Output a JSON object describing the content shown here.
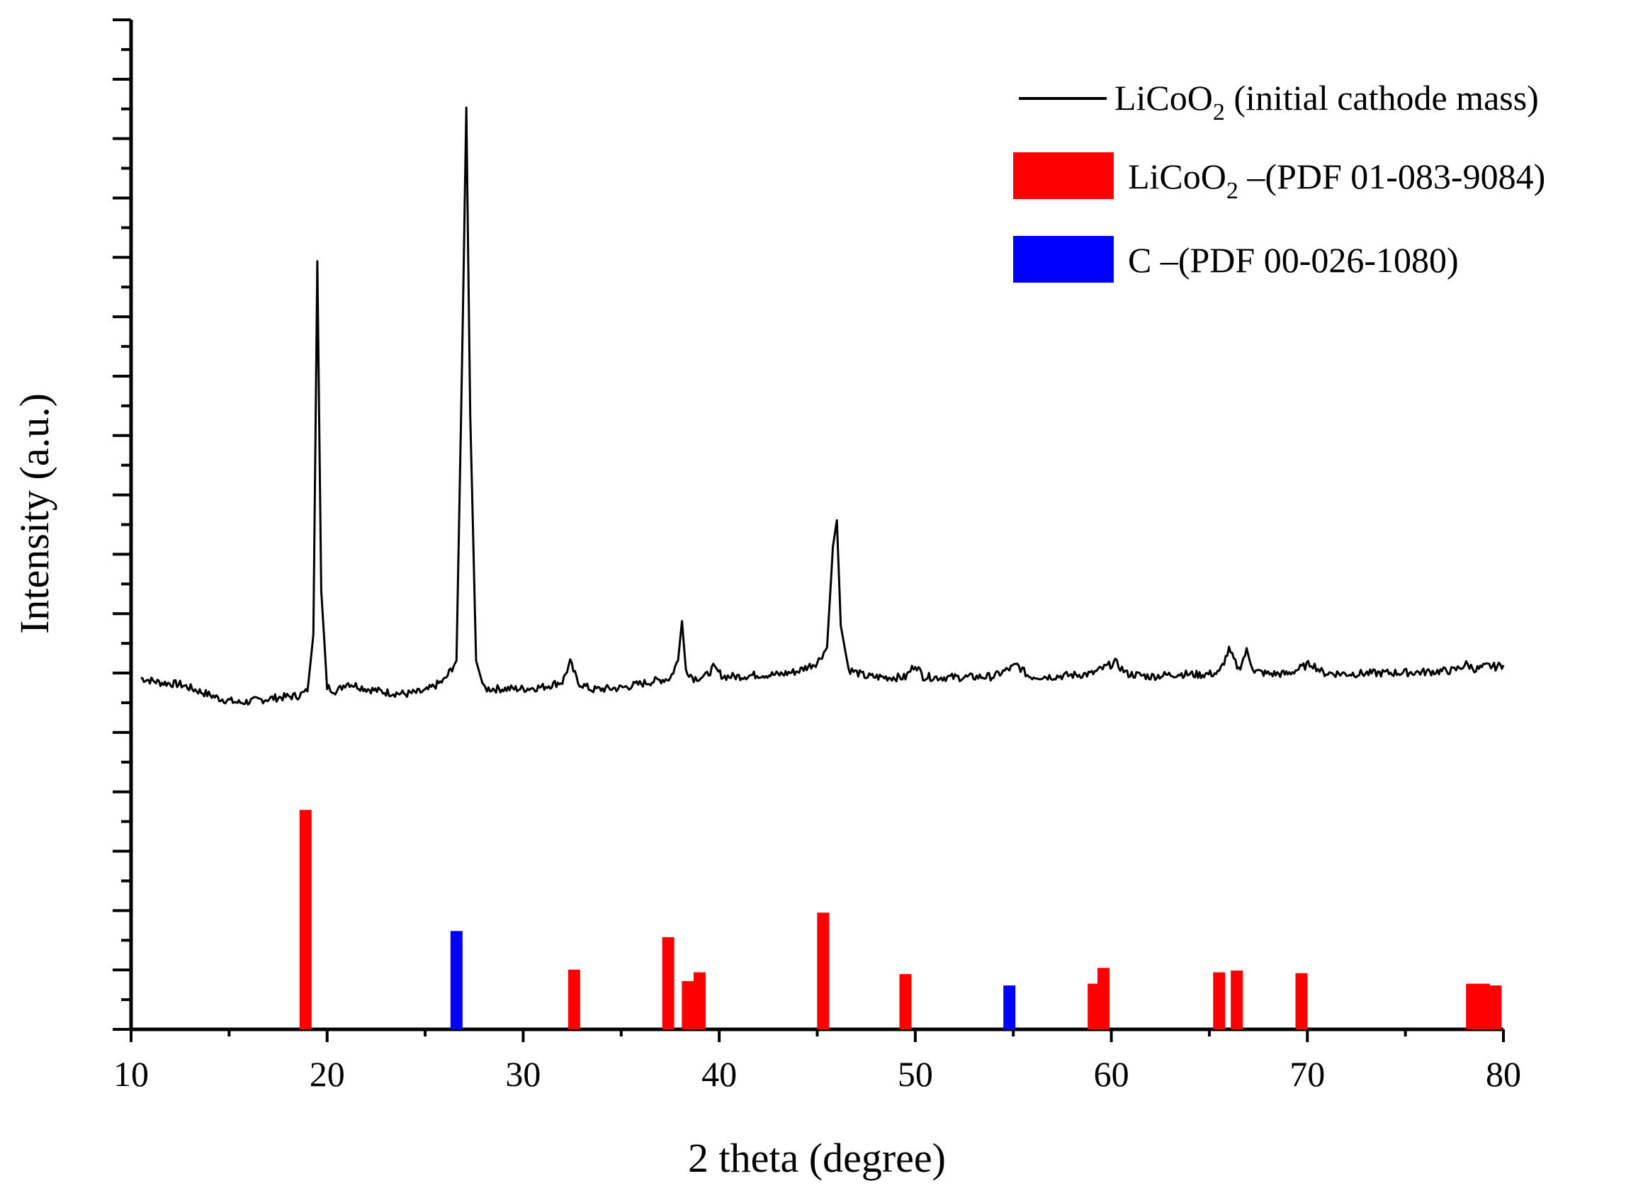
{
  "chart_data": {
    "type": "line",
    "xlabel": "2 theta (degree)",
    "ylabel": "Intensity (a.u.)",
    "xlim": [
      10,
      80
    ],
    "ylim": [
      0,
      115
    ],
    "x_ticks": [
      "10",
      "20",
      "30",
      "40",
      "50",
      "60",
      "70",
      "80"
    ],
    "y_tick_labels": "none",
    "grid": false,
    "legend_position": "top-right",
    "series": [
      {
        "name": "LiCoO2 (initial cathode mass)",
        "kind": "line",
        "color": "#000000",
        "x": [
          10.5,
          11.5,
          12.5,
          13.5,
          14.5,
          15.5,
          16.5,
          17.5,
          18.5,
          19.0,
          19.3,
          19.5,
          19.7,
          20.0,
          20.5,
          21.0,
          22.0,
          23.0,
          24.0,
          25.0,
          26.0,
          26.6,
          26.9,
          27.1,
          27.3,
          27.6,
          28.0,
          29.0,
          30.0,
          31.0,
          32.0,
          32.4,
          32.8,
          33.5,
          35.0,
          36.5,
          37.5,
          37.9,
          38.1,
          38.3,
          38.7,
          39.3,
          39.7,
          40.2,
          41.0,
          42.0,
          43.0,
          44.0,
          45.0,
          45.5,
          45.8,
          46.0,
          46.2,
          46.6,
          47.5,
          48.5,
          49.5,
          50.0,
          50.4,
          51.0,
          52.5,
          54.0,
          55.2,
          55.8,
          57.0,
          59.0,
          60.2,
          60.8,
          62.0,
          63.5,
          64.5,
          65.5,
          66.0,
          66.5,
          66.9,
          67.3,
          68.0,
          69.0,
          70.2,
          70.8,
          72.0,
          74.0,
          76.0,
          77.5,
          78.1,
          78.6,
          79.2,
          79.6,
          80.0
        ],
        "y": [
          40,
          39.5,
          39.3,
          38.5,
          37.7,
          37.2,
          37.5,
          37.8,
          38.0,
          38.5,
          45,
          87.5,
          50,
          39,
          38.5,
          39.5,
          38.8,
          38.4,
          38.2,
          38.5,
          39.8,
          42,
          78,
          105,
          70,
          42,
          38.8,
          38.8,
          38.8,
          39.0,
          39.6,
          41.8,
          39.5,
          38.7,
          38.9,
          39.6,
          40,
          42,
          46.5,
          41,
          40,
          40.2,
          41.2,
          40.2,
          40.2,
          40.4,
          40.4,
          40.8,
          41.8,
          43.5,
          55,
          58,
          46,
          41,
          40.2,
          40.1,
          40.1,
          41.6,
          40.2,
          40.1,
          40.1,
          40.2,
          41.5,
          40.2,
          40.2,
          40.5,
          41.8,
          40.5,
          40.2,
          40.5,
          40.4,
          40.6,
          43.2,
          41,
          43.1,
          40.8,
          40.5,
          40.5,
          41.7,
          40.6,
          40.5,
          40.6,
          40.7,
          40.9,
          41.6,
          41,
          41.4,
          41.3,
          41.5
        ]
      },
      {
        "name": "LiCoO2 –(PDF 01-083-9084)",
        "kind": "sticks",
        "color": "#ff0000",
        "x": [
          18.9,
          32.6,
          37.4,
          38.4,
          39.0,
          45.3,
          49.5,
          59.1,
          59.6,
          65.5,
          66.4,
          69.7,
          78.4,
          79.0,
          79.6
        ],
        "y": [
          25,
          6.8,
          10.5,
          5.5,
          6.5,
          13.3,
          6.3,
          5.2,
          7,
          6.5,
          6.7,
          6.4,
          5.2,
          5.2,
          5.0
        ]
      },
      {
        "name": "C –(PDF 00-026-1080)",
        "kind": "sticks",
        "color": "#0000ff",
        "x": [
          26.6,
          54.8
        ],
        "y": [
          11.2,
          5
        ]
      }
    ]
  },
  "legend": {
    "line_item": {
      "prefix": "LiCoO",
      "subscript": "2",
      "suffix": " (initial cathode mass)"
    },
    "red_item": {
      "prefix": "LiCoO",
      "subscript": "2",
      "suffix": " –(PDF 01-083-9084)"
    },
    "blue_item": {
      "text": "C –(PDF 00-026-1080)"
    }
  },
  "colors": {
    "line": "#000000",
    "licoo2_ref": "#ff0000",
    "carbon_ref": "#0000ff"
  }
}
